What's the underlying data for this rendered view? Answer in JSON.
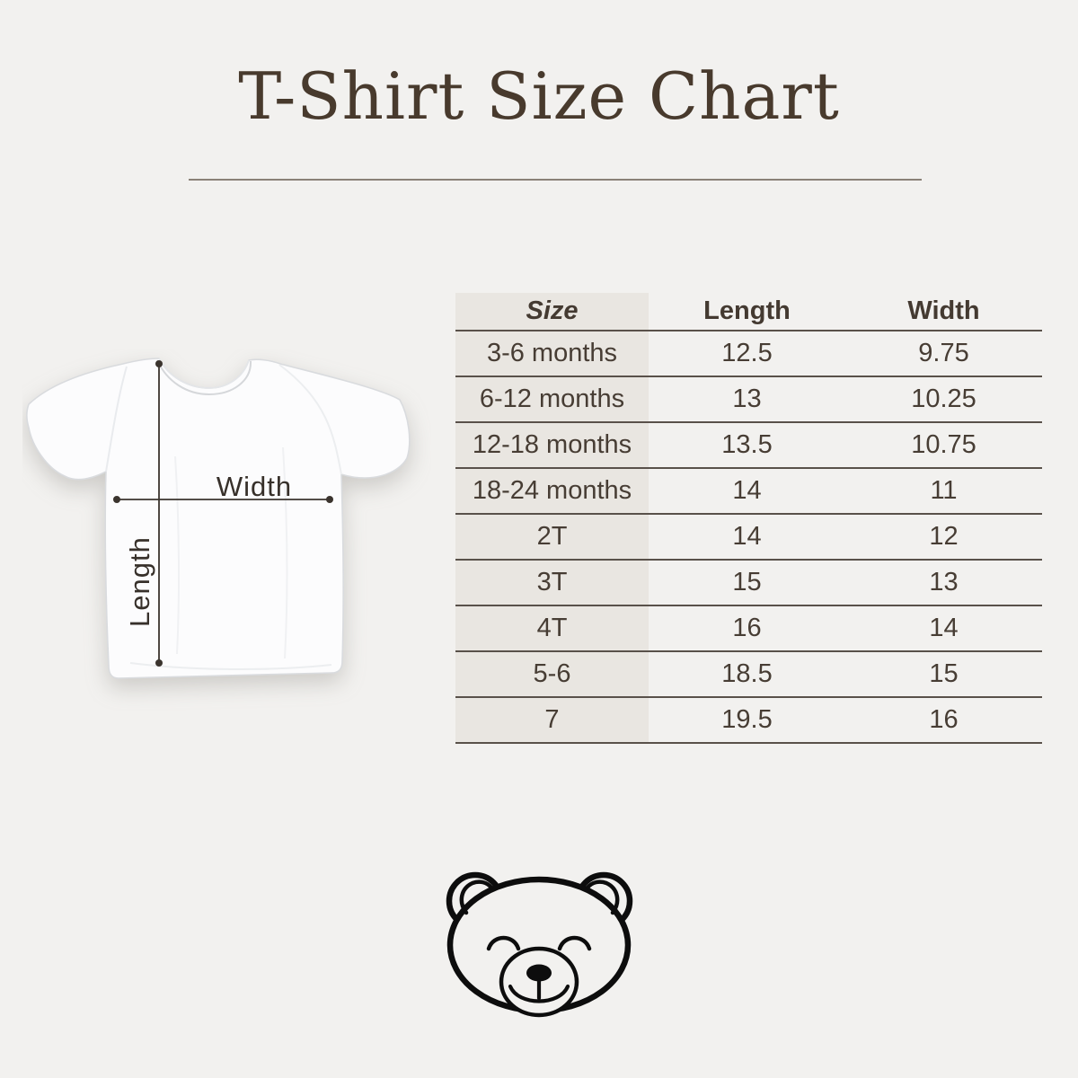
{
  "page": {
    "title": "T-Shirt Size Chart",
    "background_color": "#f2f1ef",
    "title_color": "#483a2d",
    "divider_color": "#8a8177"
  },
  "diagram": {
    "width_label": "Width",
    "length_label": "Length",
    "shirt_color": "#fcfcfd",
    "measure_line_color": "#3b342e"
  },
  "table": {
    "columns": [
      "Size",
      "Length",
      "Width"
    ],
    "rows": [
      [
        "3-6 months",
        "12.5",
        "9.75"
      ],
      [
        "6-12 months",
        "13",
        "10.25"
      ],
      [
        "12-18 months",
        "13.5",
        "10.75"
      ],
      [
        "18-24 months",
        "14",
        "11"
      ],
      [
        "2T",
        "14",
        "12"
      ],
      [
        "3T",
        "15",
        "13"
      ],
      [
        "4T",
        "16",
        "14"
      ],
      [
        "5-6",
        "18.5",
        "15"
      ],
      [
        "7",
        "19.5",
        "16"
      ]
    ],
    "size_column_bg": "#e9e6e1",
    "row_line_color": "#59514a",
    "text_color": "#473d34"
  },
  "chart_data": {
    "type": "table",
    "title": "T-Shirt Size Chart",
    "columns": [
      "Size",
      "Length",
      "Width"
    ],
    "categories": [
      "3-6 months",
      "6-12 months",
      "12-18 months",
      "18-24 months",
      "2T",
      "3T",
      "4T",
      "5-6",
      "7"
    ],
    "series": [
      {
        "name": "Length",
        "values": [
          12.5,
          13,
          13.5,
          14,
          14,
          15,
          16,
          18.5,
          19.5
        ]
      },
      {
        "name": "Width",
        "values": [
          9.75,
          10.25,
          10.75,
          11,
          12,
          13,
          14,
          15,
          16
        ]
      }
    ]
  },
  "footer": {
    "bear_icon_color": "#0d0d0d"
  }
}
